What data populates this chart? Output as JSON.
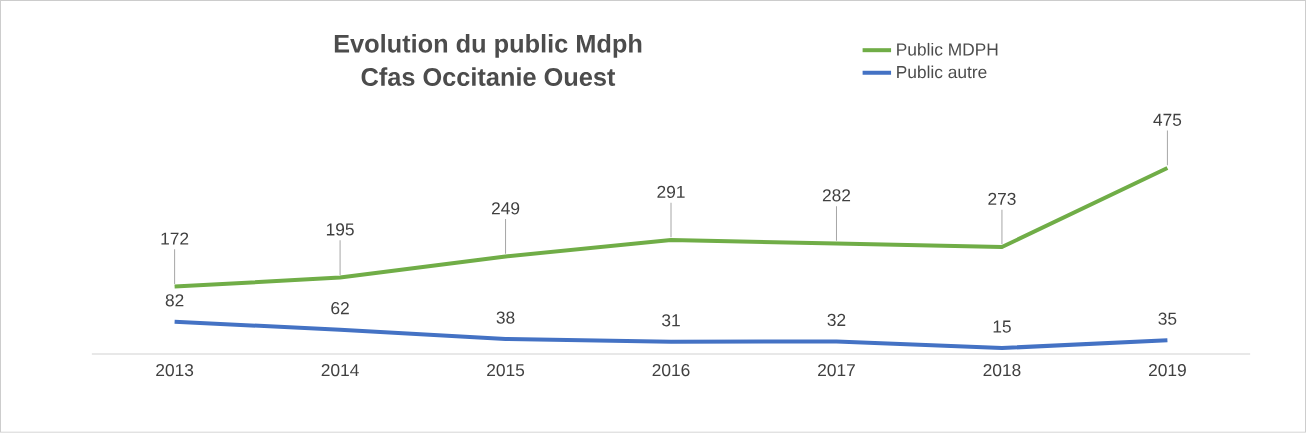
{
  "chart_data": {
    "type": "line",
    "title": "Evolution du public Mdph",
    "subtitle": "Cfas Occitanie Ouest",
    "categories": [
      "2013",
      "2014",
      "2015",
      "2016",
      "2017",
      "2018",
      "2019"
    ],
    "series": [
      {
        "name": "Public MDPH",
        "color": "#70ad47",
        "values": [
          172,
          195,
          249,
          291,
          282,
          273,
          475
        ]
      },
      {
        "name": "Public autre",
        "color": "#4472c4",
        "values": [
          82,
          62,
          38,
          31,
          32,
          15,
          35
        ]
      }
    ],
    "data_labels": true,
    "legend": "top right",
    "tick_labels": "x",
    "marker": "none",
    "line_style": "solid",
    "grid": false
  }
}
